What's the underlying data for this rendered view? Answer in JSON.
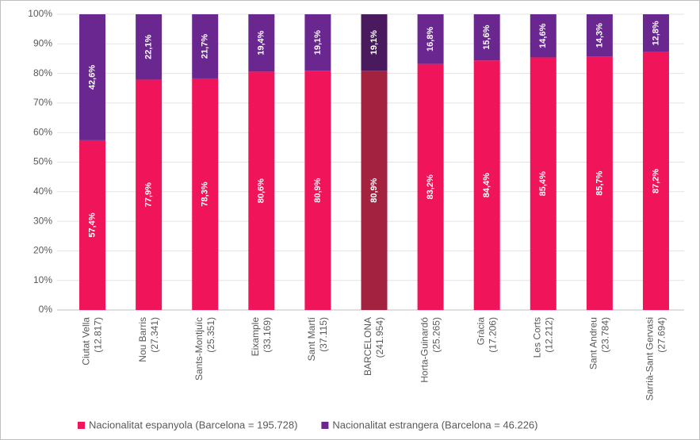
{
  "chart_data": {
    "type": "stacked_bar",
    "categories": [
      [
        "Ciutat Vella",
        "(12.817)"
      ],
      [
        "Nou Barris",
        "(27.341)"
      ],
      [
        "Sants-Montjuïc",
        "(25.351)"
      ],
      [
        "Eixample",
        "(33.169)"
      ],
      [
        "Sant Martí",
        "(37.115)"
      ],
      [
        "BARCELONA",
        "(241.954)"
      ],
      [
        "Horta-Guinardó",
        "(25.265)"
      ],
      [
        "Gràcia",
        "(17.206)"
      ],
      [
        "Les Corts",
        "(12.212)"
      ],
      [
        "Sant Andreu",
        "(23.784)"
      ],
      [
        "Sarrià-Sant Gervasi",
        "(27.694)"
      ]
    ],
    "series": [
      {
        "name": "Nacionalitat espanyola (Barcelona = 195.728)",
        "color": "#f0145a",
        "colors": [
          "#f0145a",
          "#f0145a",
          "#f0145a",
          "#f0145a",
          "#f0145a",
          "#a3223f",
          "#f0145a",
          "#f0145a",
          "#f0145a",
          "#f0145a",
          "#f0145a"
        ],
        "values": [
          57.4,
          77.9,
          78.3,
          80.6,
          80.9,
          80.9,
          83.2,
          84.4,
          85.4,
          85.7,
          87.2
        ],
        "value_labels": [
          "57,4%",
          "77,9%",
          "78,3%",
          "80,6%",
          "80,9%",
          "80,9%",
          "83,2%",
          "84,4%",
          "85,4%",
          "85,7%",
          "87,2%"
        ]
      },
      {
        "name": "Nacionalitat estrangera (Barcelona = 46.226)",
        "color": "#6a2790",
        "colors": [
          "#6a2790",
          "#6a2790",
          "#6a2790",
          "#6a2790",
          "#6a2790",
          "#4a1a5f",
          "#6a2790",
          "#6a2790",
          "#6a2790",
          "#6a2790",
          "#6a2790"
        ],
        "values": [
          42.6,
          22.1,
          21.7,
          19.4,
          19.1,
          19.1,
          16.8,
          15.6,
          14.6,
          14.3,
          12.8
        ],
        "value_labels": [
          "42,6%",
          "22,1%",
          "21,7%",
          "19,4%",
          "19,1%",
          "19,1%",
          "16,8%",
          "15,6%",
          "14,6%",
          "14,3%",
          "12,8%"
        ]
      }
    ],
    "ylim": [
      0,
      100
    ],
    "yticks": [
      {
        "value": 0,
        "label": "0%"
      },
      {
        "value": 10,
        "label": "10%"
      },
      {
        "value": 20,
        "label": "20%"
      },
      {
        "value": 30,
        "label": "30%"
      },
      {
        "value": 40,
        "label": "40%"
      },
      {
        "value": 50,
        "label": "50%"
      },
      {
        "value": 60,
        "label": "60%"
      },
      {
        "value": 70,
        "label": "70%"
      },
      {
        "value": 80,
        "label": "80%"
      },
      {
        "value": 90,
        "label": "90%"
      },
      {
        "value": 100,
        "label": "100%"
      }
    ],
    "legend": "bottom"
  }
}
